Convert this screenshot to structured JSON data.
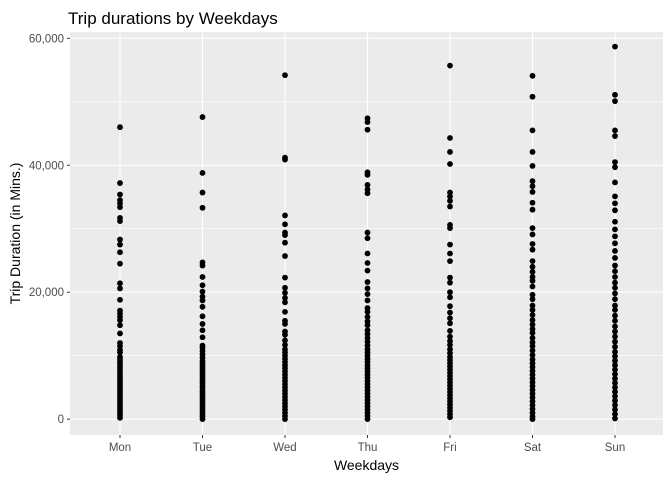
{
  "chart_data": {
    "type": "scatter",
    "title": "Trip durations by Weekdays",
    "xlabel": "Weekdays",
    "ylabel": "Trip Duration (in Mins.)",
    "categories": [
      "Mon",
      "Tue",
      "Wed",
      "Thu",
      "Fri",
      "Sat",
      "Sun"
    ],
    "y_ticks": [
      0,
      20000,
      40000,
      60000
    ],
    "y_tick_labels": [
      "0",
      "20,000",
      "40,000",
      "60,000"
    ],
    "ylim": [
      -2500,
      61000
    ],
    "grid": true,
    "colors": {
      "panel": "#ebebeb",
      "grid_major": "#ffffff",
      "point": "#000000"
    },
    "series": [
      {
        "category": "Mon",
        "values": [
          46000,
          37200,
          35400,
          34500,
          34000,
          33400,
          31700,
          31200,
          28300,
          27500,
          26300,
          24500,
          21400,
          20600,
          18800,
          17100,
          16600,
          16100,
          15600,
          14800,
          13500,
          12000,
          11500,
          10900,
          10500,
          9800,
          9400,
          9000,
          8600,
          8200,
          7800,
          7400,
          7000,
          6600,
          6200,
          5800,
          5400,
          5000,
          4600,
          4200,
          3800,
          3400,
          3000,
          2600,
          2200,
          1800,
          1400,
          1000,
          600,
          200
        ]
      },
      {
        "category": "Tue",
        "values": [
          47600,
          38800,
          35700,
          33300,
          24700,
          24200,
          22400,
          21100,
          20100,
          19300,
          18700,
          17700,
          16200,
          15000,
          14000,
          12900,
          11600,
          11200,
          10700,
          10200,
          9700,
          9200,
          8800,
          8400,
          8000,
          7600,
          7200,
          6800,
          6400,
          6000,
          5600,
          5200,
          4800,
          4400,
          4000,
          3600,
          3200,
          2800,
          2400,
          2000,
          1600,
          1200,
          800,
          400,
          0
        ]
      },
      {
        "category": "Wed",
        "values": [
          54200,
          41200,
          40900,
          32100,
          30700,
          29400,
          29000,
          27800,
          25700,
          22300,
          20700,
          19900,
          19100,
          18400,
          16900,
          15500,
          15000,
          13800,
          13300,
          12400,
          11700,
          11000,
          10500,
          10000,
          9500,
          9000,
          8500,
          8000,
          7500,
          7000,
          6500,
          6000,
          5500,
          5000,
          4500,
          4000,
          3500,
          3000,
          2500,
          2000,
          1500,
          1000,
          500,
          0
        ]
      },
      {
        "category": "Thu",
        "values": [
          47400,
          46800,
          45600,
          38900,
          38500,
          36900,
          36200,
          35600,
          29400,
          28500,
          26100,
          24600,
          23400,
          21600,
          20600,
          19700,
          18700,
          17500,
          16900,
          16100,
          15400,
          14800,
          14000,
          13400,
          12800,
          12200,
          11600,
          11000,
          10500,
          10000,
          9500,
          9000,
          8500,
          8000,
          7500,
          7000,
          6500,
          6000,
          5500,
          5000,
          4500,
          4000,
          3500,
          3000,
          2500,
          2000,
          1500,
          1000,
          500,
          0
        ]
      },
      {
        "category": "Fri",
        "values": [
          55700,
          44300,
          42100,
          40200,
          35700,
          35100,
          34400,
          33500,
          30600,
          30100,
          27500,
          26100,
          24900,
          22300,
          21500,
          20000,
          19200,
          17800,
          16800,
          15900,
          15100,
          13900,
          13000,
          12300,
          11700,
          11000,
          10400,
          9800,
          9300,
          8800,
          8300,
          7800,
          7300,
          6800,
          6300,
          5800,
          5300,
          4800,
          4300,
          3800,
          3300,
          2800,
          2300,
          1800,
          1300,
          800,
          300
        ]
      },
      {
        "category": "Sat",
        "values": [
          54100,
          50800,
          45500,
          42100,
          39900,
          37500,
          36700,
          35800,
          34100,
          33000,
          30100,
          29100,
          27600,
          26700,
          24900,
          24000,
          23200,
          22400,
          21800,
          20900,
          19600,
          18900,
          17900,
          17200,
          16400,
          15600,
          14900,
          14200,
          13600,
          12800,
          12100,
          11500,
          10800,
          10100,
          9400,
          8800,
          8200,
          7600,
          7000,
          6400,
          5800,
          5200,
          4600,
          4000,
          3400,
          2800,
          2200,
          1600,
          1000,
          400,
          0
        ]
      },
      {
        "category": "Sun",
        "values": [
          58700,
          51100,
          50100,
          45500,
          44600,
          40500,
          39700,
          37300,
          35100,
          34000,
          32900,
          31100,
          29900,
          28800,
          27700,
          26500,
          25400,
          24200,
          23300,
          22400,
          21500,
          20700,
          19800,
          18900,
          17900,
          17200,
          16300,
          15500,
          14600,
          13800,
          13000,
          12200,
          11400,
          10600,
          9900,
          9200,
          8500,
          7800,
          7100,
          6400,
          5700,
          5000,
          4300,
          3600,
          2900,
          2200,
          1500,
          800,
          100
        ]
      }
    ]
  }
}
